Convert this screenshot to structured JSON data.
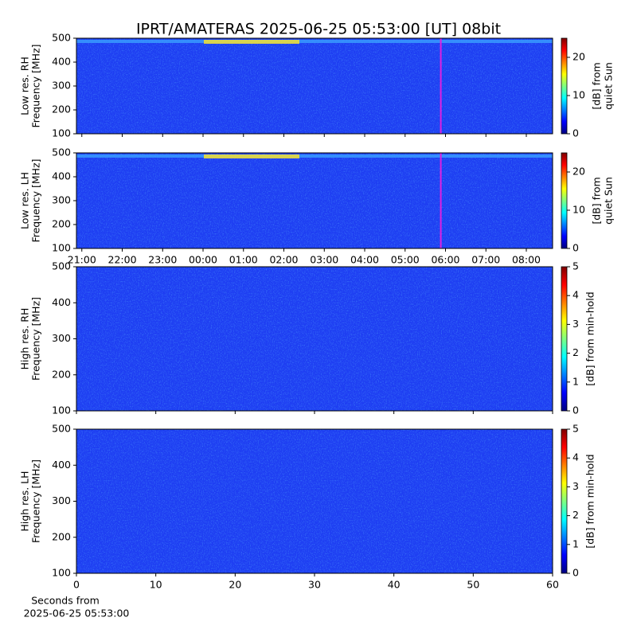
{
  "chart_data": [
    {
      "type": "heatmap",
      "title": "IPRT/AMATERAS 2025-06-25 05:53:00 [UT]   08bit",
      "ylabel": [
        "Low res. RH",
        "Frequency [MHz]"
      ],
      "ylim": [
        100,
        500
      ],
      "yticks": [
        100,
        200,
        300,
        400,
        500
      ],
      "xlim": [
        "20:52",
        "08:39"
      ],
      "xticks": [
        "21:00",
        "22:00",
        "23:00",
        "00:00",
        "01:00",
        "02:00",
        "03:00",
        "04:00",
        "05:00",
        "06:00",
        "07:00",
        "08:00"
      ],
      "show_xtick_labels": false,
      "vline": {
        "x": "05:53",
        "color": "#e020e0"
      },
      "colorbar": {
        "label": [
          "[dB] from",
          "quiet Sun"
        ],
        "lim": [
          0,
          25
        ],
        "ticks": [
          0,
          10,
          20
        ],
        "cmap": "jet"
      }
    },
    {
      "type": "heatmap",
      "ylabel": [
        "Low res. LH",
        "Frequency [MHz]"
      ],
      "ylim": [
        100,
        500
      ],
      "yticks": [
        100,
        200,
        300,
        400,
        500
      ],
      "xlim": [
        "20:52",
        "08:39"
      ],
      "xticks": [
        "21:00",
        "22:00",
        "23:00",
        "00:00",
        "01:00",
        "02:00",
        "03:00",
        "04:00",
        "05:00",
        "06:00",
        "07:00",
        "08:00"
      ],
      "show_xtick_labels": true,
      "vline": {
        "x": "05:53",
        "color": "#e020e0"
      },
      "colorbar": {
        "label": [
          "[dB] from",
          "quiet Sun"
        ],
        "lim": [
          0,
          25
        ],
        "ticks": [
          0,
          10,
          20
        ],
        "cmap": "jet"
      }
    },
    {
      "type": "heatmap",
      "ylabel": [
        "High res. RH",
        "Frequency [MHz]"
      ],
      "ylim": [
        100,
        500
      ],
      "yticks": [
        100,
        200,
        300,
        400,
        500
      ],
      "xlim": [
        0,
        60
      ],
      "xticks": [
        0,
        10,
        20,
        30,
        40,
        50,
        60
      ],
      "show_xtick_labels": false,
      "colorbar": {
        "label": [
          "[dB] from min-hold"
        ],
        "lim": [
          0,
          5
        ],
        "ticks": [
          0,
          1,
          2,
          3,
          4,
          5
        ],
        "cmap": "jet"
      }
    },
    {
      "type": "heatmap",
      "ylabel": [
        "High res. LH",
        "Frequency [MHz]"
      ],
      "ylim": [
        100,
        500
      ],
      "yticks": [
        100,
        200,
        300,
        400,
        500
      ],
      "xlim": [
        0,
        60
      ],
      "xticks": [
        0,
        10,
        20,
        30,
        40,
        50,
        60
      ],
      "show_xtick_labels": true,
      "xlabel": [
        "Seconds from",
        "2025-06-25 05:53:00"
      ],
      "colorbar": {
        "label": [
          "[dB] from min-hold"
        ],
        "lim": [
          0,
          5
        ],
        "ticks": [
          0,
          1,
          2,
          3,
          4,
          5
        ],
        "cmap": "jet"
      }
    }
  ]
}
